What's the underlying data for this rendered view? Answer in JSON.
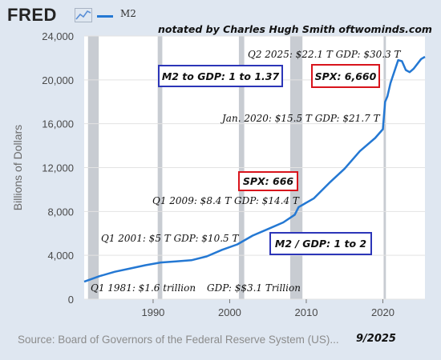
{
  "header": {
    "logo": "FRED",
    "logo_icon": "line-chart-icon",
    "legend_series": "M2",
    "notated": "notated by Charles Hugh Smith  oftwominds.com"
  },
  "colors": {
    "series": "#2478d3",
    "page_background": "#dfe7f1",
    "plot_background": "#ffffff",
    "recession": "#c8ccd2",
    "box_blue": "#2c35b8",
    "box_red": "#d8141c"
  },
  "chart_data": {
    "type": "line",
    "series": [
      {
        "name": "M2",
        "x": [
          1981,
          1983,
          1985,
          1987,
          1989,
          1991,
          1993,
          1995,
          1997,
          1999,
          2001,
          2003,
          2005,
          2007,
          2008.5,
          2009,
          2011,
          2013,
          2015,
          2017,
          2019,
          2020,
          2020.3,
          2020.6,
          2021,
          2022,
          2022.5,
          2023,
          2023.5,
          2024,
          2025,
          2025.5
        ],
        "y": [
          1600,
          2100,
          2500,
          2800,
          3100,
          3350,
          3450,
          3550,
          3900,
          4500,
          5000,
          5800,
          6400,
          7000,
          7700,
          8400,
          9200,
          10600,
          11900,
          13500,
          14700,
          15500,
          18000,
          18500,
          19700,
          21800,
          21700,
          20900,
          20700,
          21000,
          21900,
          22100
        ]
      }
    ],
    "ylabel": "Billions of Dollars",
    "xlabel": "",
    "xlim": [
      1981,
      2025.5
    ],
    "ylim": [
      0,
      24000
    ],
    "y_ticks": [
      0,
      4000,
      8000,
      12000,
      16000,
      20000,
      24000
    ],
    "y_tick_labels": [
      "0",
      "4,000",
      "8,000",
      "12,000",
      "16,000",
      "20,000",
      "24,000"
    ],
    "x_ticks": [
      1990,
      2000,
      2010,
      2020
    ],
    "x_tick_labels": [
      "1990",
      "2000",
      "2010",
      "2020"
    ],
    "recessions": [
      [
        1981.5,
        1982.9
      ],
      [
        1990.6,
        1991.2
      ],
      [
        2001.2,
        2001.9
      ],
      [
        2007.9,
        2009.5
      ],
      [
        2020.1,
        2020.4
      ]
    ],
    "grid": "horizontal",
    "annotations": [
      {
        "id": "q2-2025",
        "text": "Q2 2025: $22.1 T  GDP: $30.3 T"
      },
      {
        "id": "jan-2020",
        "text": "Jan. 2020: $15.5 T  GDP: $21.7 T"
      },
      {
        "id": "q1-2009",
        "text": "Q1 2009: $8.4 T  GDP: $14.4 T"
      },
      {
        "id": "q1-2001",
        "text": "Q1 2001: $5 T   GDP: $10.5 T"
      },
      {
        "id": "q1-1981",
        "text": "Q1 1981: $1.6 trillion"
      },
      {
        "id": "gdp-1981",
        "text": "GDP: $$3.1 Trillion"
      }
    ],
    "boxes": [
      {
        "id": "m2-gdp-137",
        "text": "M2 to GDP: 1 to 1.37",
        "color": "blue"
      },
      {
        "id": "spx-6660",
        "text": "SPX: 6,660",
        "color": "red"
      },
      {
        "id": "spx-666",
        "text": "SPX: 666",
        "color": "red"
      },
      {
        "id": "m2-gdp-2",
        "text": "M2 / GDP: 1 to 2",
        "color": "blue"
      }
    ]
  },
  "footer": {
    "source": "Source: Board of Governors of the Federal Reserve System (US)...",
    "date": "9/2025"
  }
}
